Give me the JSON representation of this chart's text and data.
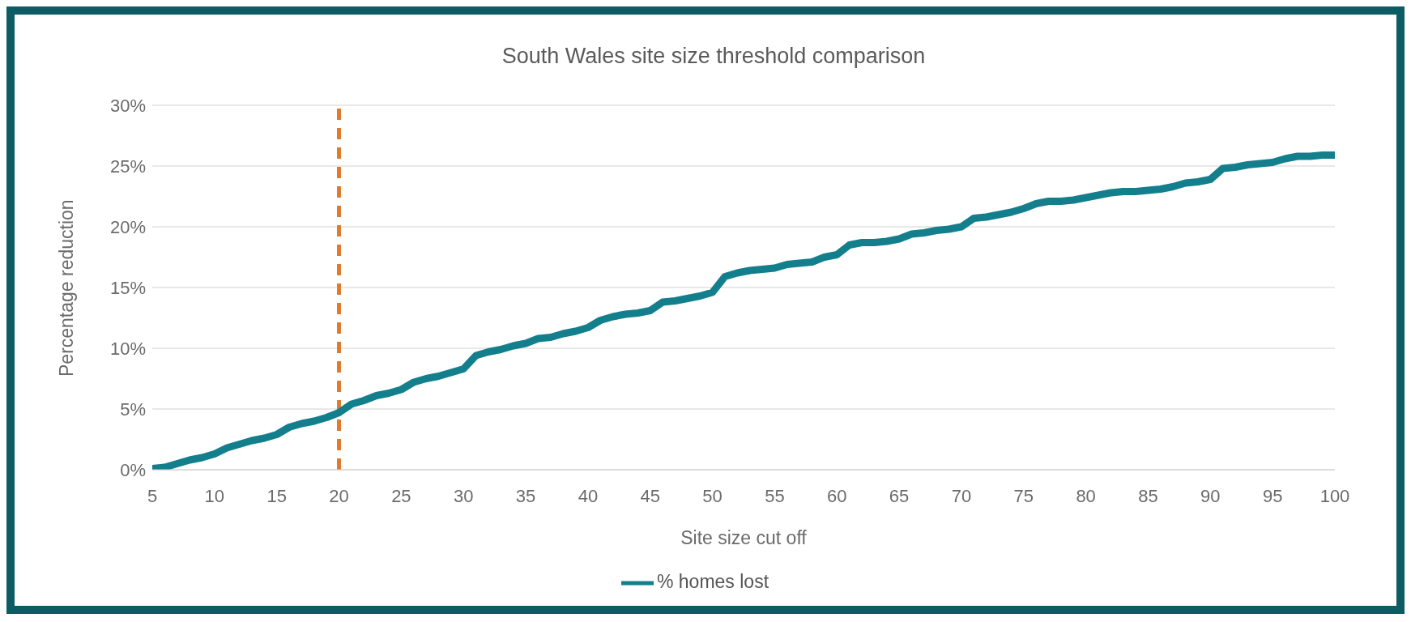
{
  "chart_data": {
    "type": "line",
    "title": "South Wales site size threshold comparison",
    "xlabel": "Site size cut off",
    "ylabel": "Percentage reduction",
    "x": [
      5,
      6,
      7,
      8,
      9,
      10,
      11,
      12,
      13,
      14,
      15,
      16,
      17,
      18,
      19,
      20,
      21,
      22,
      23,
      24,
      25,
      26,
      27,
      28,
      29,
      30,
      31,
      32,
      33,
      34,
      35,
      36,
      37,
      38,
      39,
      40,
      41,
      42,
      43,
      44,
      45,
      46,
      47,
      48,
      49,
      50,
      51,
      52,
      53,
      54,
      55,
      56,
      57,
      58,
      59,
      60,
      61,
      62,
      63,
      64,
      65,
      66,
      67,
      68,
      69,
      70,
      71,
      72,
      73,
      74,
      75,
      76,
      77,
      78,
      79,
      80,
      81,
      82,
      83,
      84,
      85,
      86,
      87,
      88,
      89,
      90,
      91,
      92,
      93,
      94,
      95,
      96,
      97,
      98,
      99,
      100
    ],
    "series": [
      {
        "name": "% homes lost",
        "color": "#137f8c",
        "values": [
          0.1,
          0.2,
          0.5,
          0.8,
          1.0,
          1.3,
          1.8,
          2.1,
          2.4,
          2.6,
          2.9,
          3.5,
          3.8,
          4.0,
          4.3,
          4.7,
          5.4,
          5.7,
          6.1,
          6.3,
          6.6,
          7.2,
          7.5,
          7.7,
          8.0,
          8.3,
          9.4,
          9.7,
          9.9,
          10.2,
          10.4,
          10.8,
          10.9,
          11.2,
          11.4,
          11.7,
          12.3,
          12.6,
          12.8,
          12.9,
          13.1,
          13.8,
          13.9,
          14.1,
          14.3,
          14.6,
          15.9,
          16.2,
          16.4,
          16.5,
          16.6,
          16.9,
          17.0,
          17.1,
          17.5,
          17.7,
          18.5,
          18.7,
          18.7,
          18.8,
          19.0,
          19.4,
          19.5,
          19.7,
          19.8,
          20.0,
          20.7,
          20.8,
          21.0,
          21.2,
          21.5,
          21.9,
          22.1,
          22.1,
          22.2,
          22.4,
          22.6,
          22.8,
          22.9,
          22.9,
          23.0,
          23.1,
          23.3,
          23.6,
          23.7,
          23.9,
          24.8,
          24.9,
          25.1,
          25.2,
          25.3,
          25.6,
          25.8,
          25.8,
          25.9,
          25.9
        ]
      }
    ],
    "xlim": [
      5,
      100
    ],
    "xticks": [
      5,
      10,
      15,
      20,
      25,
      30,
      35,
      40,
      45,
      50,
      55,
      60,
      65,
      70,
      75,
      80,
      85,
      90,
      95,
      100
    ],
    "ylim": [
      0,
      30
    ],
    "yticks": [
      {
        "value": 0,
        "label": "0%"
      },
      {
        "value": 5,
        "label": "5%"
      },
      {
        "value": 10,
        "label": "10%"
      },
      {
        "value": 15,
        "label": "15%"
      },
      {
        "value": 20,
        "label": "20%"
      },
      {
        "value": 25,
        "label": "25%"
      },
      {
        "value": 30,
        "label": "30%"
      }
    ],
    "ref_lines": [
      {
        "axis": "x",
        "value": 20,
        "color": "#e07b2e",
        "line_style": "dashed"
      }
    ],
    "grid": "y",
    "legend": "bottom",
    "marker": "none",
    "line_style": "solid"
  }
}
